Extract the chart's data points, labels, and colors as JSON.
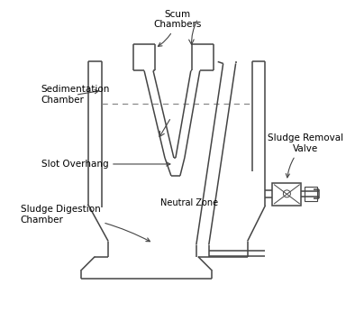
{
  "bg_color": "#ffffff",
  "line_color": "#444444",
  "dashed_color": "#888888",
  "text_color": "#000000",
  "labels": {
    "scum": "Scum\nChambers",
    "sedimentation": "Sedimentation\nChamber",
    "slot": "Slot Overhang",
    "digestion": "Sludge Digestion\nChamber",
    "neutral": "Neutral Zone",
    "sludge_valve": "Sludge Removal\nValve"
  },
  "figsize": [
    3.94,
    3.46
  ],
  "dpi": 100
}
